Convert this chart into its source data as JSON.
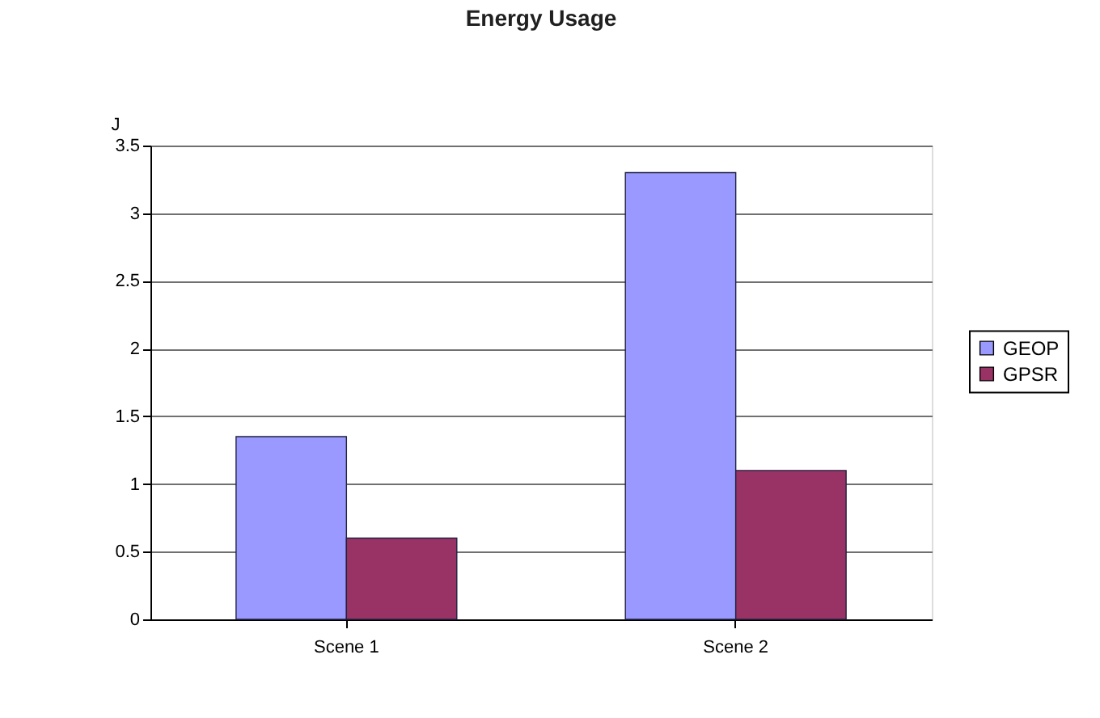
{
  "chart_data": {
    "type": "bar",
    "title": "Energy Usage",
    "ylabel": "J",
    "categories": [
      "Scene 1",
      "Scene 2"
    ],
    "series": [
      {
        "name": "GEOP",
        "color": "#9999ff",
        "values": [
          1.35,
          3.3
        ]
      },
      {
        "name": "GPSR",
        "color": "#993366",
        "values": [
          0.6,
          1.1
        ]
      }
    ],
    "ylim": [
      0,
      3.5
    ],
    "yticks": [
      0,
      0.5,
      1,
      1.5,
      2,
      2.5,
      3,
      3.5
    ],
    "grid": "y",
    "legend": "right"
  }
}
